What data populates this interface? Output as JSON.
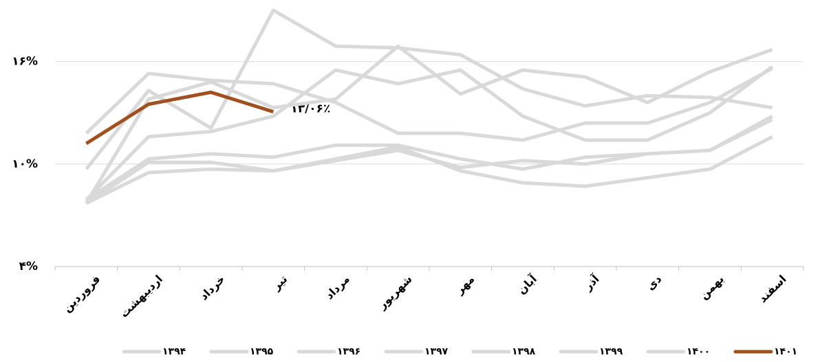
{
  "chart_data": {
    "type": "line",
    "categories": [
      "فروردین",
      "اردیبهشت",
      "خرداد",
      "تیر",
      "مرداد",
      "شهریور",
      "مهر",
      "آبان",
      "آذر",
      "دی",
      "بهمن",
      "اسفند"
    ],
    "ylim": [
      4,
      19.2
    ],
    "yticks": [
      {
        "value": 4,
        "label": "۴%"
      },
      {
        "value": 10,
        "label": "۱۰%"
      },
      {
        "value": 16,
        "label": "۱۶%"
      }
    ],
    "grid": true,
    "series": [
      {
        "name": "۱۳۹۴",
        "color": "#d9d9d9",
        "values": [
          9.7,
          14.3,
          12.1,
          19.0,
          16.9,
          16.8,
          16.4,
          14.4,
          13.4,
          14.0,
          13.9,
          13.3
        ]
      },
      {
        "name": "۱۳۹۵",
        "color": "#d9d9d9",
        "values": [
          11.8,
          15.3,
          14.9,
          14.7,
          13.6,
          11.8,
          11.8,
          11.4,
          12.4,
          12.4,
          13.6,
          15.6
        ]
      },
      {
        "name": "۱۳۹۶",
        "color": "#d9d9d9",
        "values": [
          7.9,
          11.6,
          11.9,
          12.8,
          15.5,
          14.7,
          15.5,
          12.8,
          11.4,
          11.4,
          13.0,
          15.7
        ]
      },
      {
        "name": "۱۳۹۷",
        "color": "#d9d9d9",
        "values": [
          7.7,
          13.8,
          14.8,
          13.3,
          13.8,
          16.9,
          14.1,
          15.5,
          15.1,
          13.6,
          15.4,
          16.7
        ]
      },
      {
        "name": "۱۳۹۸",
        "color": "#d9d9d9",
        "values": [
          7.9,
          10.3,
          10.6,
          10.4,
          11.1,
          11.1,
          10.3,
          9.7,
          10.4,
          10.6,
          10.8,
          12.8
        ]
      },
      {
        "name": "۱۳۹۹",
        "color": "#d9d9d9",
        "values": [
          7.7,
          10.1,
          10.1,
          9.6,
          10.2,
          10.8,
          9.8,
          10.2,
          10.0,
          10.6,
          10.8,
          12.6
        ]
      },
      {
        "name": "۱۴۰۰",
        "color": "#d9d9d9",
        "values": [
          7.7,
          9.5,
          9.7,
          9.6,
          10.3,
          11.0,
          9.6,
          8.9,
          8.7,
          9.2,
          9.7,
          11.6
        ]
      },
      {
        "name": "۱۴۰۱",
        "color": "#a0501e",
        "values": [
          11.2,
          13.5,
          14.2,
          13.06,
          null,
          null,
          null,
          null,
          null,
          null,
          null,
          null
        ]
      }
    ],
    "annotation": "۱۳/۰۶٪"
  }
}
